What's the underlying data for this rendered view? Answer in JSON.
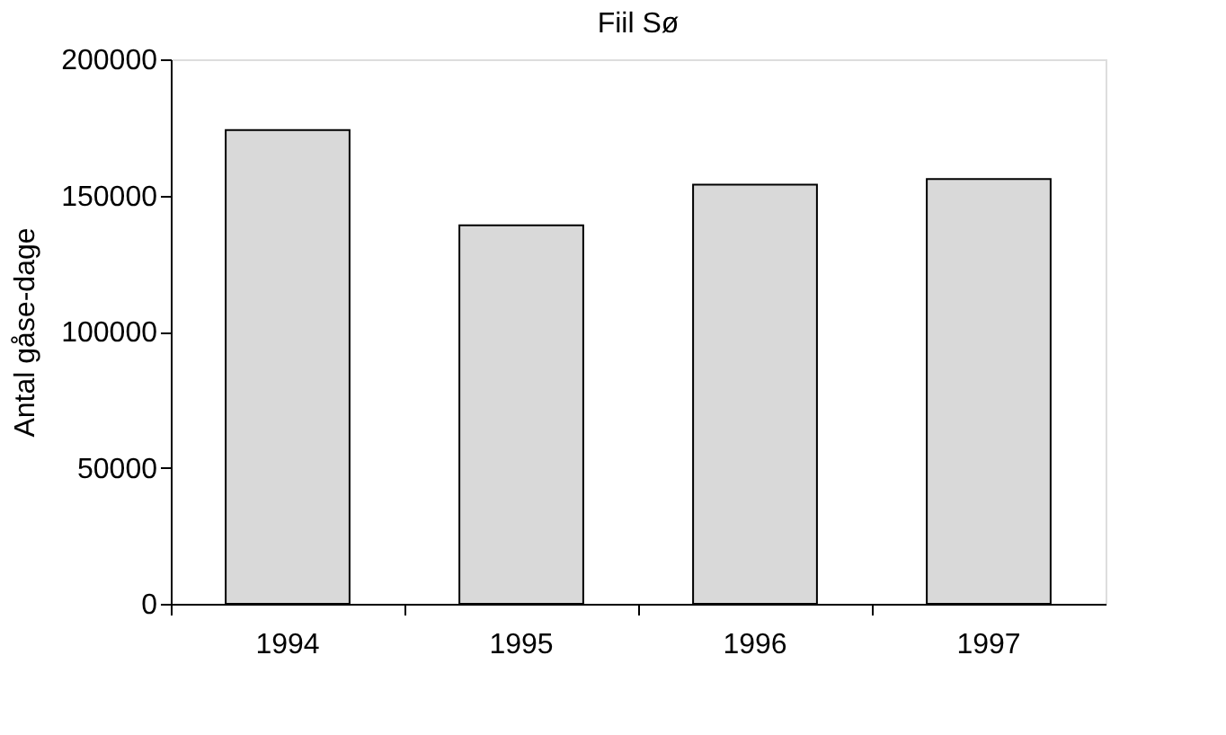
{
  "chart_data": {
    "type": "bar",
    "title": "Fiil Sø",
    "ylabel": "Antal gåse-dage",
    "categories": [
      "1994",
      "1995",
      "1996",
      "1997"
    ],
    "values": [
      174000,
      139000,
      154000,
      156000
    ],
    "color": "#d9d9d9",
    "ylim": [
      0,
      200000
    ],
    "yticks": [
      0,
      50000,
      100000,
      150000,
      200000
    ],
    "grid": false
  }
}
